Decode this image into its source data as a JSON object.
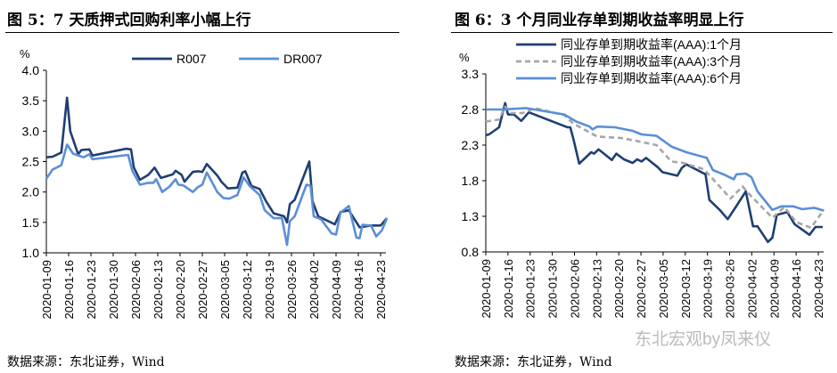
{
  "chart_data": [
    {
      "type": "line",
      "title": "图 5：7 天质押式回购利率小幅上行",
      "ylabel": "%",
      "ylim": [
        1.0,
        4.0
      ],
      "yticks": [
        "4.0",
        "3.5",
        "3.0",
        "2.5",
        "2.0",
        "1.5",
        "1.0"
      ],
      "x_unit": "days since 2020-01-09",
      "xticks": [
        "2020-01-09",
        "2020-01-16",
        "2020-01-23",
        "2020-01-30",
        "2020-02-06",
        "2020-02-13",
        "2020-02-20",
        "2020-02-27",
        "2020-03-05",
        "2020-03-12",
        "2020-03-19",
        "2020-03-26",
        "2020-04-02",
        "2020-04-09",
        "2020-04-16",
        "2020-04-23"
      ],
      "legend_position": "top",
      "grid": false,
      "series": [
        {
          "name": "R007",
          "color": "#1f3f73",
          "dash": false,
          "points": [
            [
              0,
              2.57
            ],
            [
              2,
              2.58
            ],
            [
              4.7,
              2.65
            ],
            [
              6.5,
              3.55
            ],
            [
              7.5,
              3.0
            ],
            [
              10,
              2.62
            ],
            [
              11,
              2.69
            ],
            [
              13.5,
              2.7
            ],
            [
              14.5,
              2.6
            ],
            [
              25,
              2.71
            ],
            [
              26.6,
              2.7
            ],
            [
              27.5,
              2.4
            ],
            [
              29.4,
              2.2
            ],
            [
              32,
              2.28
            ],
            [
              34,
              2.4
            ],
            [
              36,
              2.23
            ],
            [
              39.7,
              2.29
            ],
            [
              40.6,
              2.35
            ],
            [
              42.5,
              2.28
            ],
            [
              43.4,
              2.17
            ],
            [
              46,
              2.33
            ],
            [
              47.6,
              2.34
            ],
            [
              49,
              2.33
            ],
            [
              50.4,
              2.46
            ],
            [
              53.7,
              2.27
            ],
            [
              55,
              2.17
            ],
            [
              57,
              2.06
            ],
            [
              60,
              2.07
            ],
            [
              61.6,
              2.32
            ],
            [
              62.5,
              2.34
            ],
            [
              64.4,
              2.1
            ],
            [
              67,
              2.05
            ],
            [
              69,
              1.85
            ],
            [
              71.4,
              1.65
            ],
            [
              74.7,
              1.6
            ],
            [
              75.6,
              1.5
            ],
            [
              76.5,
              1.8
            ],
            [
              78,
              1.87
            ],
            [
              82.6,
              2.5
            ],
            [
              83.6,
              1.85
            ],
            [
              85.4,
              1.6
            ],
            [
              90.6,
              1.47
            ],
            [
              92.4,
              1.67
            ],
            [
              95,
              1.7
            ],
            [
              98.4,
              1.42
            ],
            [
              102,
              1.45
            ],
            [
              105,
              1.45
            ],
            [
              107,
              1.57
            ]
          ]
        },
        {
          "name": "DR007",
          "color": "#5b8fd6",
          "dash": false,
          "points": [
            [
              0,
              2.22
            ],
            [
              2,
              2.37
            ],
            [
              4.7,
              2.44
            ],
            [
              6.5,
              2.78
            ],
            [
              8.4,
              2.63
            ],
            [
              11.7,
              2.57
            ],
            [
              13.5,
              2.62
            ],
            [
              14.5,
              2.54
            ],
            [
              25.7,
              2.61
            ],
            [
              27,
              2.35
            ],
            [
              29.4,
              2.12
            ],
            [
              32,
              2.15
            ],
            [
              33.6,
              2.15
            ],
            [
              34.5,
              2.21
            ],
            [
              36.4,
              2.0
            ],
            [
              38.7,
              2.09
            ],
            [
              40.6,
              2.21
            ],
            [
              41.5,
              2.12
            ],
            [
              43,
              2.11
            ],
            [
              46,
              2.0
            ],
            [
              47.6,
              2.08
            ],
            [
              49,
              2.12
            ],
            [
              50.4,
              2.32
            ],
            [
              53.7,
              2.0
            ],
            [
              55.6,
              1.9
            ],
            [
              57.4,
              1.89
            ],
            [
              60,
              1.95
            ],
            [
              62,
              2.24
            ],
            [
              63.8,
              2.1
            ],
            [
              67,
              1.95
            ],
            [
              68.6,
              1.7
            ],
            [
              71.4,
              1.57
            ],
            [
              74,
              1.57
            ],
            [
              75.6,
              1.13
            ],
            [
              76.5,
              1.52
            ],
            [
              78,
              1.6
            ],
            [
              81.7,
              2.12
            ],
            [
              83,
              2.1
            ],
            [
              84,
              1.6
            ],
            [
              86.3,
              1.55
            ],
            [
              89.6,
              1.32
            ],
            [
              91,
              1.3
            ],
            [
              92.4,
              1.66
            ],
            [
              95,
              1.77
            ],
            [
              97.4,
              1.25
            ],
            [
              98.4,
              1.24
            ],
            [
              99.3,
              1.46
            ],
            [
              102,
              1.45
            ],
            [
              103.6,
              1.27
            ],
            [
              105.4,
              1.37
            ],
            [
              107,
              1.57
            ]
          ]
        }
      ]
    },
    {
      "type": "line",
      "title": "图 6：3 个月同业存单到期收益率明显上行",
      "ylabel": "%",
      "ylim": [
        0.8,
        3.3
      ],
      "yticks": [
        "3.3",
        "2.8",
        "2.3",
        "1.8",
        "1.3",
        "0.8"
      ],
      "x_unit": "days since 2020-01-09",
      "xticks": [
        "2020-01-09",
        "2020-01-16",
        "2020-01-23",
        "2020-01-30",
        "2020-02-06",
        "2020-02-13",
        "2020-02-20",
        "2020-02-27",
        "2020-03-05",
        "2020-03-12",
        "2020-03-19",
        "2020-03-26",
        "2020-04-02",
        "2020-04-09",
        "2020-04-16",
        "2020-04-23"
      ],
      "legend_position": "top",
      "grid": false,
      "series": [
        {
          "name": "同业存单到期收益率(AAA):1个月",
          "color": "#1f3f73",
          "dash": false,
          "points": [
            [
              0,
              2.44
            ],
            [
              1,
              2.45
            ],
            [
              4.2,
              2.55
            ],
            [
              6.1,
              2.89
            ],
            [
              7,
              2.73
            ],
            [
              8.9,
              2.73
            ],
            [
              11.2,
              2.64
            ],
            [
              13.6,
              2.76
            ],
            [
              25.8,
              2.55
            ],
            [
              26.7,
              2.55
            ],
            [
              27.7,
              2.38
            ],
            [
              29.5,
              2.04
            ],
            [
              33.3,
              2.2
            ],
            [
              34.2,
              2.18
            ],
            [
              35.6,
              2.24
            ],
            [
              39.8,
              2.09
            ],
            [
              41.2,
              2.18
            ],
            [
              43.6,
              2.1
            ],
            [
              46.4,
              2.05
            ],
            [
              47.8,
              2.1
            ],
            [
              49.2,
              2.07
            ],
            [
              50.6,
              2.12
            ],
            [
              54.3,
              1.99
            ],
            [
              55.8,
              1.92
            ],
            [
              60.5,
              1.87
            ],
            [
              61.9,
              1.98
            ],
            [
              63.3,
              2.03
            ],
            [
              69.4,
              1.89
            ],
            [
              70.6,
              1.53
            ],
            [
              74.1,
              1.38
            ],
            [
              76.4,
              1.26
            ],
            [
              78.8,
              1.42
            ],
            [
              82.1,
              1.65
            ],
            [
              84.4,
              1.16
            ],
            [
              85.8,
              1.16
            ],
            [
              89.1,
              0.94
            ],
            [
              90.5,
              1.0
            ],
            [
              91.9,
              1.32
            ],
            [
              95.2,
              1.36
            ],
            [
              97.5,
              1.19
            ],
            [
              102.2,
              1.04
            ],
            [
              104.1,
              1.15
            ],
            [
              106.4,
              1.15
            ]
          ]
        },
        {
          "name": "同业存单到期收益率(AAA):3个月",
          "color": "#a6a6a6",
          "dash": true,
          "points": [
            [
              0,
              2.63
            ],
            [
              4.2,
              2.66
            ],
            [
              6.1,
              2.84
            ],
            [
              8,
              2.75
            ],
            [
              11.7,
              2.75
            ],
            [
              15.5,
              2.82
            ],
            [
              24.8,
              2.72
            ],
            [
              27.7,
              2.6
            ],
            [
              31.9,
              2.5
            ],
            [
              35.2,
              2.42
            ],
            [
              42.7,
              2.4
            ],
            [
              47.4,
              2.36
            ],
            [
              53.9,
              2.3
            ],
            [
              58.6,
              2.07
            ],
            [
              62.3,
              2.05
            ],
            [
              68.9,
              1.96
            ],
            [
              77.3,
              1.55
            ],
            [
              81.1,
              1.72
            ],
            [
              83,
              1.62
            ],
            [
              90.5,
              1.28
            ],
            [
              94.3,
              1.43
            ],
            [
              98,
              1.22
            ],
            [
              102.7,
              1.14
            ],
            [
              106.4,
              1.37
            ]
          ]
        },
        {
          "name": "同业存单到期收益率(AAA):6个月",
          "color": "#5b8fd6",
          "dash": false,
          "points": [
            [
              0,
              2.8
            ],
            [
              5.2,
              2.8
            ],
            [
              12.7,
              2.82
            ],
            [
              24.8,
              2.73
            ],
            [
              28.6,
              2.63
            ],
            [
              32.8,
              2.56
            ],
            [
              33.7,
              2.52
            ],
            [
              35.2,
              2.56
            ],
            [
              40.8,
              2.55
            ],
            [
              46.4,
              2.5
            ],
            [
              49.2,
              2.45
            ],
            [
              53.9,
              2.43
            ],
            [
              58.6,
              2.28
            ],
            [
              63.3,
              2.2
            ],
            [
              69.8,
              2.12
            ],
            [
              71.7,
              1.95
            ],
            [
              75.5,
              1.88
            ],
            [
              78.3,
              1.82
            ],
            [
              79.2,
              1.89
            ],
            [
              82.1,
              1.9
            ],
            [
              83.9,
              1.85
            ],
            [
              85.8,
              1.65
            ],
            [
              90.5,
              1.39
            ],
            [
              93.3,
              1.44
            ],
            [
              97.1,
              1.44
            ],
            [
              99.9,
              1.4
            ],
            [
              103.7,
              1.42
            ],
            [
              106.8,
              1.38
            ]
          ]
        }
      ]
    }
  ],
  "sources": [
    "数据来源：东北证券，Wind",
    "数据来源：东北证券，Wind"
  ],
  "watermark": "东北宏观by凤来仪"
}
